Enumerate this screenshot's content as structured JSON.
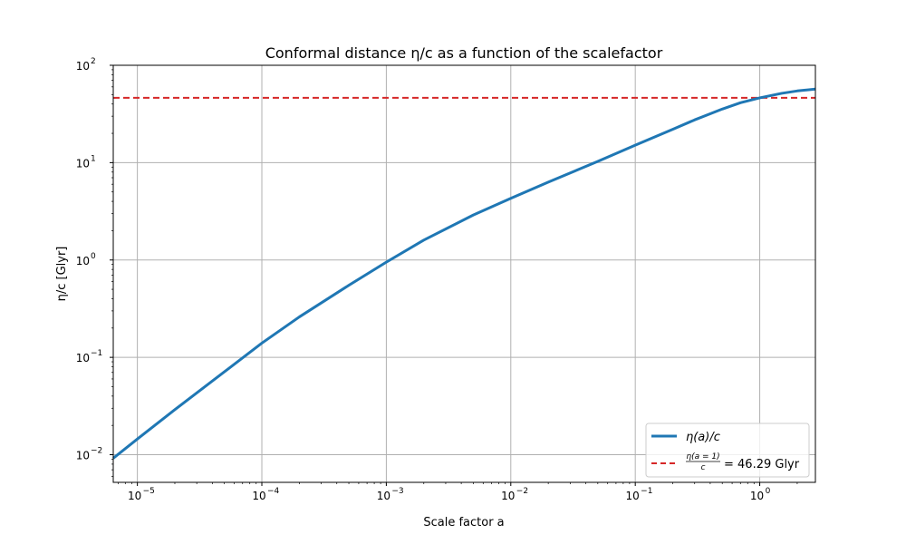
{
  "chart_data": {
    "type": "line",
    "title": "Conformal distance η/c as a function of the scalefactor",
    "xlabel": "Scale factor a",
    "ylabel": "η/c [Glyr]",
    "xscale": "log",
    "yscale": "log",
    "xlim": [
      6.4e-06,
      2.8
    ],
    "ylim": [
      0.0052,
      100
    ],
    "grid": true,
    "legend_placement": "lower-right",
    "x_ticks": [
      {
        "base": "10",
        "exp": "−5",
        "value": 1e-05
      },
      {
        "base": "10",
        "exp": "−4",
        "value": 0.0001
      },
      {
        "base": "10",
        "exp": "−3",
        "value": 0.001
      },
      {
        "base": "10",
        "exp": "−2",
        "value": 0.01
      },
      {
        "base": "10",
        "exp": "−1",
        "value": 0.1
      },
      {
        "base": "10",
        "exp": "0",
        "value": 1
      }
    ],
    "y_ticks": [
      {
        "base": "10",
        "exp": "−2",
        "value": 0.01
      },
      {
        "base": "10",
        "exp": "−1",
        "value": 0.1
      },
      {
        "base": "10",
        "exp": "0",
        "value": 1
      },
      {
        "base": "10",
        "exp": "1",
        "value": 10
      },
      {
        "base": "10",
        "exp": "2",
        "value": 100
      }
    ],
    "series": [
      {
        "name": "η(a)/c",
        "color": "#1f77b4",
        "style": "solid",
        "x": [
          6.4e-06,
          1e-05,
          2e-05,
          5e-05,
          0.0001,
          0.0002,
          0.0005,
          0.001,
          0.002,
          0.005,
          0.01,
          0.02,
          0.05,
          0.1,
          0.2,
          0.3,
          0.5,
          0.7,
          1.0,
          1.5,
          2.0,
          2.8
        ],
        "y": [
          0.0092,
          0.0145,
          0.029,
          0.071,
          0.14,
          0.26,
          0.55,
          0.95,
          1.6,
          2.9,
          4.3,
          6.3,
          10.3,
          15.1,
          22.0,
          27.5,
          35.5,
          41.2,
          46.29,
          51.5,
          54.5,
          57.0
        ]
      },
      {
        "name": "η(a=1)/c = 46.29 Glyr",
        "color": "#d62728",
        "style": "dashed",
        "x": [
          6.4e-06,
          2.8
        ],
        "y": [
          46.29,
          46.29
        ]
      }
    ],
    "legend": [
      {
        "label_main": "η(a)/c"
      },
      {
        "label_frac_num": "η(a = 1)",
        "label_frac_den": "c",
        "label_rest": "= 46.29 Glyr"
      }
    ]
  }
}
